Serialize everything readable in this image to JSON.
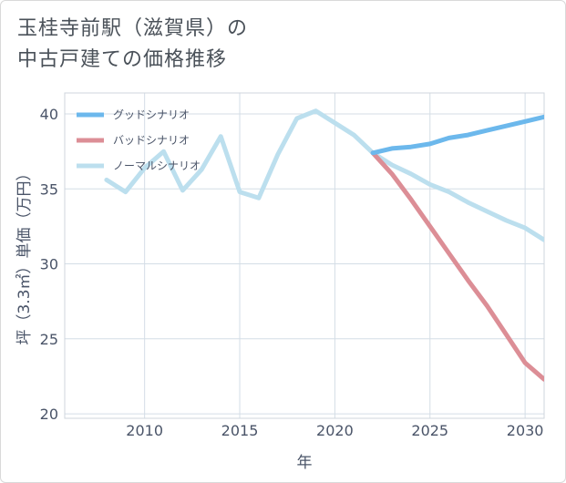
{
  "title": {
    "line1": "玉桂寺前駅（滋賀県）の",
    "line2": "中古戸建ての価格推移"
  },
  "chart_data": {
    "type": "line",
    "xlabel": "年",
    "ylabel": "坪（3.3㎡）単価（万円）",
    "xlim": [
      2005.8,
      2031
    ],
    "ylim": [
      19.7,
      41.4
    ],
    "x_ticks": [
      2010,
      2015,
      2020,
      2025,
      2030
    ],
    "y_ticks": [
      20,
      25,
      30,
      35,
      40
    ],
    "x_tick_labels": [
      "2010",
      "2015",
      "2020",
      "2025",
      "2030"
    ],
    "y_tick_labels": [
      "20",
      "25",
      "30",
      "35",
      "40"
    ],
    "legend_position": "top-left",
    "series": [
      {
        "name": "グッドシナリオ",
        "color": "#6cb8ec",
        "x": [
          2022,
          2023,
          2024,
          2025,
          2026,
          2027,
          2028,
          2029,
          2030,
          2031
        ],
        "values": [
          37.4,
          37.7,
          37.8,
          38.0,
          38.4,
          38.6,
          38.9,
          39.2,
          39.5,
          39.8
        ]
      },
      {
        "name": "バッドシナリオ",
        "color": "#dc8e96",
        "x": [
          2022,
          2023,
          2024,
          2025,
          2026,
          2027,
          2028,
          2029,
          2030,
          2031
        ],
        "values": [
          37.4,
          36.0,
          34.3,
          32.5,
          30.7,
          28.9,
          27.2,
          25.3,
          23.4,
          22.3
        ]
      },
      {
        "name": "ノーマルシナリオ",
        "color": "#bcdfee",
        "x": [
          2008,
          2009,
          2010,
          2011,
          2012,
          2013,
          2014,
          2015,
          2016,
          2017,
          2018,
          2019,
          2020,
          2021,
          2022,
          2023,
          2024,
          2025,
          2026,
          2027,
          2028,
          2029,
          2030,
          2031
        ],
        "values": [
          35.6,
          34.8,
          36.4,
          37.5,
          34.9,
          36.3,
          38.5,
          34.8,
          34.4,
          37.3,
          39.7,
          40.2,
          39.4,
          38.6,
          37.4,
          36.6,
          36.0,
          35.3,
          34.8,
          34.1,
          33.5,
          32.9,
          32.4,
          31.6
        ]
      }
    ]
  }
}
